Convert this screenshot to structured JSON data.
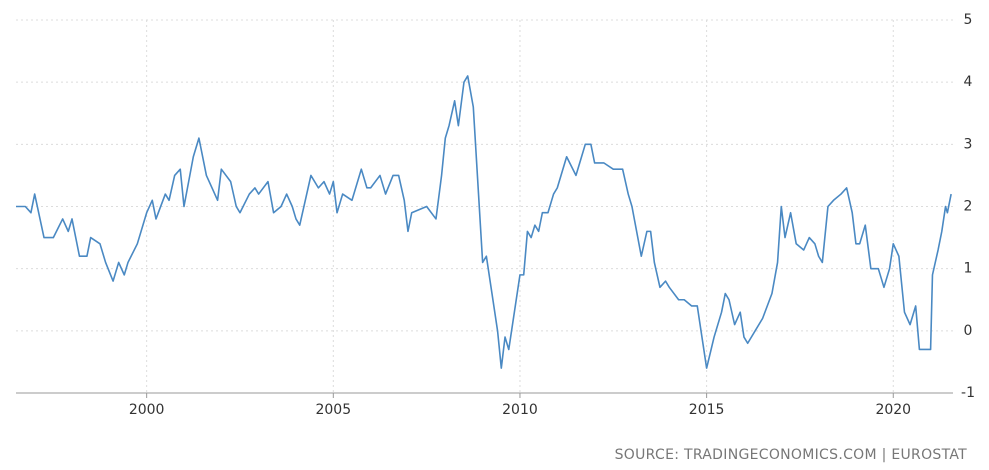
{
  "chart_data": {
    "type": "line",
    "source": "SOURCE: TRADINGECONOMICS.COM | EUROSTAT",
    "color": "#4a89c3",
    "grid": true,
    "x": [
      1996.5,
      1996.75,
      1996.9,
      1997.0,
      1997.25,
      1997.5,
      1997.75,
      1997.9,
      1998.0,
      1998.2,
      1998.4,
      1998.5,
      1998.75,
      1998.9,
      1999.1,
      1999.25,
      1999.4,
      1999.5,
      1999.75,
      2000.0,
      2000.15,
      2000.25,
      2000.5,
      2000.6,
      2000.75,
      2000.9,
      2001.0,
      2001.25,
      2001.4,
      2001.6,
      2001.75,
      2001.9,
      2002.0,
      2002.25,
      2002.4,
      2002.5,
      2002.75,
      2002.9,
      2003.0,
      2003.25,
      2003.4,
      2003.6,
      2003.75,
      2003.9,
      2004.0,
      2004.1,
      2004.4,
      2004.6,
      2004.75,
      2004.9,
      2005.0,
      2005.1,
      2005.25,
      2005.5,
      2005.75,
      2005.9,
      2006.0,
      2006.25,
      2006.4,
      2006.6,
      2006.75,
      2006.9,
      2007.0,
      2007.1,
      2007.5,
      2007.75,
      2007.9,
      2008.0,
      2008.1,
      2008.25,
      2008.35,
      2008.5,
      2008.6,
      2008.75,
      2008.9,
      2009.0,
      2009.1,
      2009.25,
      2009.4,
      2009.5,
      2009.6,
      2009.7,
      2009.9,
      2010.0,
      2010.1,
      2010.2,
      2010.3,
      2010.4,
      2010.5,
      2010.6,
      2010.75,
      2010.9,
      2011.0,
      2011.25,
      2011.5,
      2011.6,
      2011.75,
      2011.9,
      2012.0,
      2012.25,
      2012.5,
      2012.75,
      2012.9,
      2013.0,
      2013.25,
      2013.4,
      2013.5,
      2013.6,
      2013.75,
      2013.9,
      2014.0,
      2014.25,
      2014.4,
      2014.6,
      2014.75,
      2014.9,
      2015.0,
      2015.2,
      2015.4,
      2015.5,
      2015.6,
      2015.75,
      2015.9,
      2016.0,
      2016.1,
      2016.3,
      2016.5,
      2016.75,
      2016.9,
      2017.0,
      2017.1,
      2017.25,
      2017.4,
      2017.6,
      2017.75,
      2017.9,
      2018.0,
      2018.1,
      2018.25,
      2018.4,
      2018.6,
      2018.75,
      2018.9,
      2019.0,
      2019.1,
      2019.25,
      2019.4,
      2019.6,
      2019.75,
      2019.9,
      2020.0,
      2020.15,
      2020.3,
      2020.45,
      2020.6,
      2020.7,
      2020.9,
      2021.0,
      2021.05,
      2021.2,
      2021.3,
      2021.4,
      2021.45,
      2021.55
    ],
    "values": [
      2.0,
      2.0,
      1.9,
      2.2,
      1.5,
      1.5,
      1.8,
      1.6,
      1.8,
      1.2,
      1.2,
      1.5,
      1.4,
      1.1,
      0.8,
      1.1,
      0.9,
      1.1,
      1.4,
      1.9,
      2.1,
      1.8,
      2.2,
      2.1,
      2.5,
      2.6,
      2.0,
      2.8,
      3.1,
      2.5,
      2.3,
      2.1,
      2.6,
      2.4,
      2.0,
      1.9,
      2.2,
      2.3,
      2.2,
      2.4,
      1.9,
      2.0,
      2.2,
      2.0,
      1.8,
      1.7,
      2.5,
      2.3,
      2.4,
      2.2,
      2.4,
      1.9,
      2.2,
      2.1,
      2.6,
      2.3,
      2.3,
      2.5,
      2.2,
      2.5,
      2.5,
      2.1,
      1.6,
      1.9,
      2.0,
      1.8,
      2.5,
      3.1,
      3.3,
      3.7,
      3.3,
      4.0,
      4.1,
      3.6,
      2.1,
      1.1,
      1.2,
      0.6,
      0.0,
      -0.6,
      -0.1,
      -0.3,
      0.5,
      0.9,
      0.9,
      1.6,
      1.5,
      1.7,
      1.6,
      1.9,
      1.9,
      2.2,
      2.3,
      2.8,
      2.5,
      2.7,
      3.0,
      3.0,
      2.7,
      2.7,
      2.6,
      2.6,
      2.2,
      2.0,
      1.2,
      1.6,
      1.6,
      1.1,
      0.7,
      0.8,
      0.7,
      0.5,
      0.5,
      0.4,
      0.4,
      -0.2,
      -0.6,
      -0.1,
      0.3,
      0.6,
      0.5,
      0.1,
      0.3,
      -0.1,
      -0.2,
      0.0,
      0.2,
      0.6,
      1.1,
      2.0,
      1.5,
      1.9,
      1.4,
      1.3,
      1.5,
      1.4,
      1.2,
      1.1,
      2.0,
      2.1,
      2.2,
      2.3,
      1.9,
      1.4,
      1.4,
      1.7,
      1.0,
      1.0,
      0.7,
      1.0,
      1.4,
      1.2,
      0.3,
      0.1,
      0.4,
      -0.3,
      -0.3,
      -0.3,
      0.9,
      1.3,
      1.6,
      2.0,
      1.9,
      2.2
    ],
    "xlim": [
      1996.5,
      2021.6
    ],
    "xticks": [
      2000,
      2005,
      2010,
      2015,
      2020
    ],
    "ylim": [
      -1,
      5
    ],
    "yticks": [
      -1,
      0,
      1,
      2,
      3,
      4,
      5
    ]
  }
}
